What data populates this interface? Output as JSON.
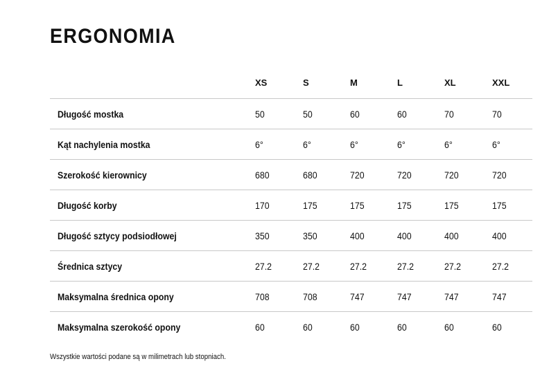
{
  "title": "ERGONOMIA",
  "sizes": [
    "XS",
    "S",
    "M",
    "L",
    "XL",
    "XXL"
  ],
  "rows": [
    {
      "label": "Długość mostka",
      "values": [
        "50",
        "50",
        "60",
        "60",
        "70",
        "70"
      ]
    },
    {
      "label": "Kąt nachylenia mostka",
      "values": [
        "6°",
        "6°",
        "6°",
        "6°",
        "6°",
        "6°"
      ]
    },
    {
      "label": "Szerokość kierownicy",
      "values": [
        "680",
        "680",
        "720",
        "720",
        "720",
        "720"
      ]
    },
    {
      "label": "Długość korby",
      "values": [
        "170",
        "175",
        "175",
        "175",
        "175",
        "175"
      ]
    },
    {
      "label": "Długość sztycy podsiodłowej",
      "values": [
        "350",
        "350",
        "400",
        "400",
        "400",
        "400"
      ]
    },
    {
      "label": "Średnica sztycy",
      "values": [
        "27.2",
        "27.2",
        "27.2",
        "27.2",
        "27.2",
        "27.2"
      ]
    },
    {
      "label": "Maksymalna średnica opony",
      "values": [
        "708",
        "708",
        "747",
        "747",
        "747",
        "747"
      ]
    },
    {
      "label": "Maksymalna szerokość opony",
      "values": [
        "60",
        "60",
        "60",
        "60",
        "60",
        "60"
      ]
    }
  ],
  "note": "Wszystkie wartości podane są w milimetrach lub stopniach."
}
